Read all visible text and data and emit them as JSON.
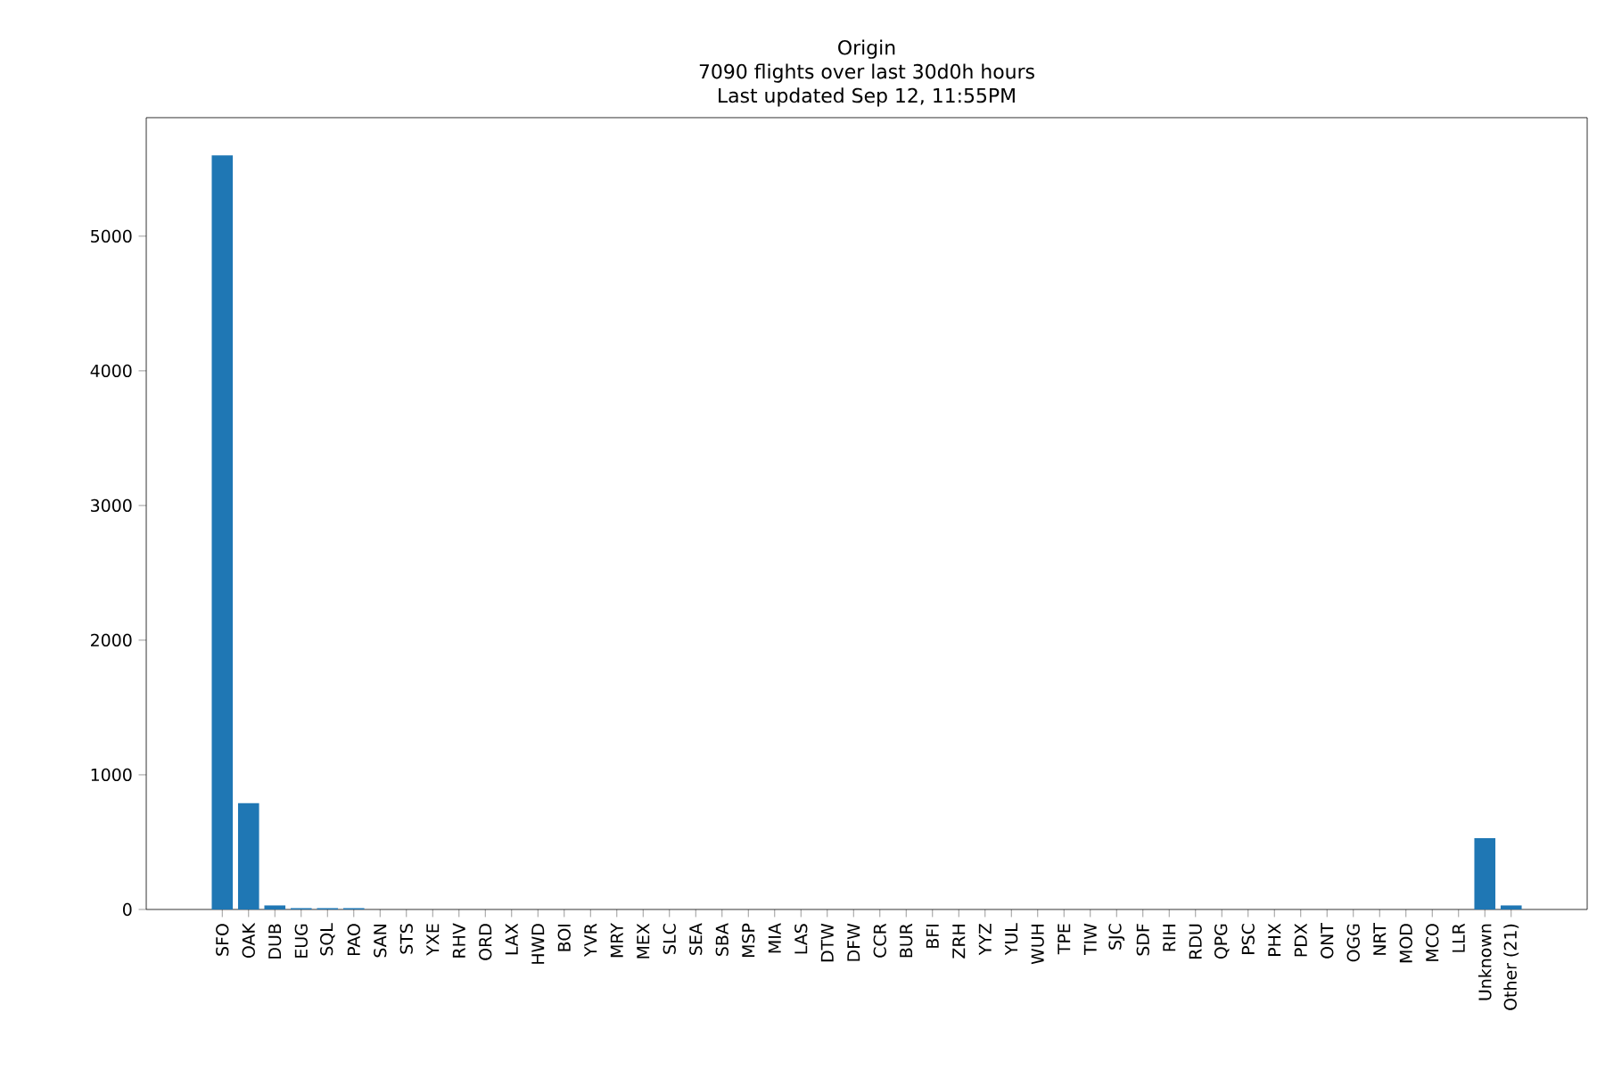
{
  "chart_data": {
    "type": "bar",
    "title": "Origin",
    "subtitle": "7090 flights over last 30d0h hours\nLast updated Sep 12, 11:55PM",
    "categories": [
      "SFO",
      "OAK",
      "DUB",
      "EUG",
      "SQL",
      "PAO",
      "SAN",
      "STS",
      "YXE",
      "RHV",
      "ORD",
      "LAX",
      "HWD",
      "BOI",
      "YVR",
      "MRY",
      "MEX",
      "SLC",
      "SEA",
      "SBA",
      "MSP",
      "MIA",
      "LAS",
      "DTW",
      "DFW",
      "CCR",
      "BUR",
      "BFI",
      "ZRH",
      "YYZ",
      "YUL",
      "WUH",
      "TPE",
      "TIW",
      "SJC",
      "SDF",
      "RIH",
      "RDU",
      "QPG",
      "PSC",
      "PHX",
      "PDX",
      "ONT",
      "OGG",
      "NRT",
      "MOD",
      "MCO",
      "LLR",
      "Unknown",
      "Other (21)"
    ],
    "values": [
      5600,
      790,
      30,
      10,
      10,
      10,
      0,
      0,
      0,
      0,
      0,
      0,
      0,
      0,
      0,
      0,
      0,
      0,
      0,
      0,
      0,
      0,
      0,
      0,
      0,
      0,
      0,
      0,
      0,
      0,
      0,
      0,
      0,
      0,
      0,
      0,
      0,
      0,
      0,
      0,
      0,
      0,
      0,
      0,
      0,
      0,
      0,
      0,
      530,
      30
    ],
    "color": "#1f77b4",
    "ylim": [
      0,
      5880
    ],
    "yticks": [
      0,
      1000,
      2000,
      3000,
      4000,
      5000
    ],
    "grid": false
  }
}
